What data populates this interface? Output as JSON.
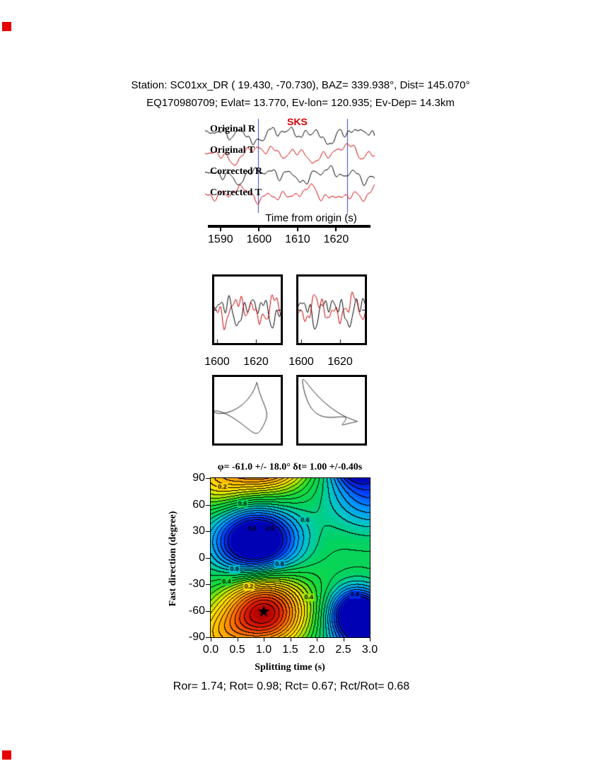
{
  "page": {
    "background": "#ffffff",
    "marker_color": "#e60000",
    "header_line1": "Station: SC01xx_DR (  19.430,  -70.730), BAZ=  339.938°, Dist=  145.070°",
    "header_line2": "EQ170980709; Evlat=  13.770, Ev-lon= 120.935; Ev-Dep= 14.3km",
    "footer": "Ror= 1.74; Rot= 0.98; Rct= 0.67; Rct/Rot= 0.68"
  },
  "chart_data": [
    {
      "id": "waveform-panel",
      "type": "line",
      "phase_label": "SKS",
      "phase_label_color": "#d40000",
      "xlabel": "Time from origin (s)",
      "xlim": [
        1586,
        1630
      ],
      "xticks": [
        1590,
        1600,
        1610,
        1620
      ],
      "window": [
        1599.8,
        1622.8
      ],
      "window_color": "#3246c8",
      "traces": [
        {
          "label": "Original R",
          "color": "#000000",
          "harmonics": [
            [
              5,
              2.3,
              0.7
            ],
            [
              4,
              4.6,
              2.1
            ],
            [
              4,
              7.1,
              4.0
            ],
            [
              3,
              10.3,
              1.1
            ],
            [
              2.5,
              14.9,
              3.3
            ],
            [
              1.8,
              20.7,
              5.2
            ],
            [
              1.2,
              27.5,
              0.4
            ]
          ]
        },
        {
          "label": "Original T",
          "color": "#cc0000",
          "harmonics": [
            [
              6,
              2.1,
              2.9
            ],
            [
              4.5,
              3.9,
              0.6
            ],
            [
              4,
              6.7,
              3.5
            ],
            [
              3,
              10.9,
              5.0
            ],
            [
              2.2,
              15.7,
              1.7
            ],
            [
              1.6,
              22.3,
              4.1
            ]
          ]
        },
        {
          "label": "Corrected R",
          "color": "#000000",
          "harmonics": [
            [
              5.5,
              2.6,
              1.9
            ],
            [
              4,
              5.1,
              4.6
            ],
            [
              4,
              8.3,
              0.2
            ],
            [
              3,
              12.1,
              2.8
            ],
            [
              2,
              17.9,
              5.6
            ],
            [
              1.4,
              24.1,
              1.5
            ]
          ]
        },
        {
          "label": "Corrected T",
          "color": "#cc0000",
          "harmonics": [
            [
              4.8,
              2.4,
              5.1
            ],
            [
              4,
              4.9,
              1.4
            ],
            [
              3.6,
              7.7,
              3.0
            ],
            [
              2.8,
              11.3,
              0.8
            ],
            [
              2,
              16.3,
              4.7
            ],
            [
              1.5,
              23.9,
              2.3
            ]
          ]
        }
      ]
    },
    {
      "id": "zoom-panels",
      "type": "line",
      "xticks": [
        1600,
        1620
      ],
      "panels": [
        {
          "traces": [
            {
              "color": "#000000",
              "harmonics": [
                [
                  11,
                  1.9,
                  0.4
                ],
                [
                  8,
                  3.7,
                  2.7
                ],
                [
                  7,
                  5.8,
                  5.1
                ],
                [
                  5,
                  8.6,
                  1.9
                ],
                [
                  3,
                  12.4,
                  3.8
                ]
              ]
            },
            {
              "color": "#cc0000",
              "harmonics": [
                [
                  10,
                  1.8,
                  3.3
                ],
                [
                  8,
                  3.5,
                  0.9
                ],
                [
                  6,
                  6.2,
                  4.5
                ],
                [
                  5,
                  9.3,
                  2.2
                ],
                [
                  3,
                  13.1,
                  5.7
                ]
              ]
            }
          ]
        },
        {
          "traces": [
            {
              "color": "#000000",
              "harmonics": [
                [
                  11,
                  2.0,
                  1.6
                ],
                [
                  8,
                  3.9,
                  4.9
                ],
                [
                  7,
                  6.1,
                  0.8
                ],
                [
                  5,
                  8.9,
                  3.5
                ],
                [
                  3,
                  12.8,
                  5.9
                ]
              ]
            },
            {
              "color": "#cc0000",
              "harmonics": [
                [
                  10,
                  1.9,
                  4.4
                ],
                [
                  8,
                  3.6,
                  1.8
                ],
                [
                  6,
                  6.4,
                  5.3
                ],
                [
                  5,
                  9.0,
                  0.3
                ],
                [
                  3,
                  13.5,
                  2.6
                ]
              ]
            }
          ]
        }
      ]
    },
    {
      "id": "particle-motion-panels",
      "type": "line",
      "panels": [
        {
          "xh": [
            [
              32,
              1,
              0.3
            ],
            [
              11,
              2,
              1.9
            ],
            [
              5,
              3,
              4.2
            ]
          ],
          "yh": [
            [
              28,
              1,
              2.0
            ],
            [
              10,
              2,
              0.5
            ],
            [
              6,
              3,
              2.9
            ]
          ]
        },
        {
          "xh": [
            [
              34,
              1,
              0.2
            ],
            [
              13,
              2,
              2.6
            ],
            [
              5,
              3,
              1.0
            ]
          ],
          "yh": [
            [
              26,
              1,
              0.55
            ],
            [
              12,
              2,
              3.0
            ],
            [
              6,
              3,
              5.0
            ]
          ]
        }
      ]
    },
    {
      "id": "splitting-contour",
      "type": "heatmap",
      "title": "φ= -61.0 +/- 18.0° δt= 1.00 +/-0.40s",
      "xlabel": "Splitting time (s)",
      "ylabel": "Fast direction (degree)",
      "xlim": [
        0,
        3
      ],
      "ylim": [
        -90,
        90
      ],
      "xticks": [
        "0.0",
        "0.5",
        "1.0",
        "1.5",
        "2.0",
        "2.5",
        "3.0"
      ],
      "yticks": [
        90,
        60,
        30,
        0,
        -30,
        -60,
        -90
      ],
      "best_fit": {
        "phi_deg": -61.0,
        "phi_err_deg": 18.0,
        "dt_s": 1.0,
        "dt_err_s": 0.4
      },
      "contour_interval": 0.04,
      "field": {
        "base": 0.62,
        "period_y": 180,
        "gaussians": [
          {
            "x": 1.02,
            "y": -61,
            "amp": -0.62,
            "sx": 0.55,
            "sy": 30
          },
          {
            "x": 0.85,
            "y": 18,
            "amp": 0.55,
            "sx": 0.55,
            "sy": 28
          },
          {
            "x": 2.75,
            "y": -63,
            "amp": 0.5,
            "sx": 0.35,
            "sy": 20
          },
          {
            "x": 3.05,
            "y": 75,
            "amp": 0.25,
            "sx": 0.6,
            "sy": 30
          },
          {
            "x": 0.1,
            "y": 88,
            "amp": -0.22,
            "sx": 0.45,
            "sy": 25
          }
        ]
      },
      "colormap": [
        [
          0.0,
          "#b40000"
        ],
        [
          0.08,
          "#e11e00"
        ],
        [
          0.18,
          "#ff6e00"
        ],
        [
          0.28,
          "#ffb400"
        ],
        [
          0.38,
          "#ffe100"
        ],
        [
          0.47,
          "#a0e800"
        ],
        [
          0.55,
          "#1edc32"
        ],
        [
          0.66,
          "#00d264"
        ],
        [
          0.73,
          "#00c8c8"
        ],
        [
          0.82,
          "#0096ff"
        ],
        [
          0.9,
          "#0041ff"
        ],
        [
          1.0,
          "#0000b4"
        ]
      ],
      "contour_labels": [
        {
          "t": "0.2",
          "x": 0.22,
          "y": 80
        },
        {
          "t": "0.6",
          "x": 0.6,
          "y": 61
        },
        {
          "t": "0.6",
          "x": 0.78,
          "y": 33
        },
        {
          "t": "0.8",
          "x": 1.12,
          "y": 33
        },
        {
          "t": "0.6",
          "x": 1.78,
          "y": 42
        },
        {
          "t": "0.6",
          "x": 0.45,
          "y": -13
        },
        {
          "t": "0.8",
          "x": 1.3,
          "y": -7
        },
        {
          "t": "0.4",
          "x": 0.3,
          "y": -27
        },
        {
          "t": "0.2",
          "x": 0.72,
          "y": -33
        },
        {
          "t": "0.4",
          "x": 1.85,
          "y": -45
        },
        {
          "t": "0.8",
          "x": 2.72,
          "y": -42
        }
      ]
    }
  ]
}
